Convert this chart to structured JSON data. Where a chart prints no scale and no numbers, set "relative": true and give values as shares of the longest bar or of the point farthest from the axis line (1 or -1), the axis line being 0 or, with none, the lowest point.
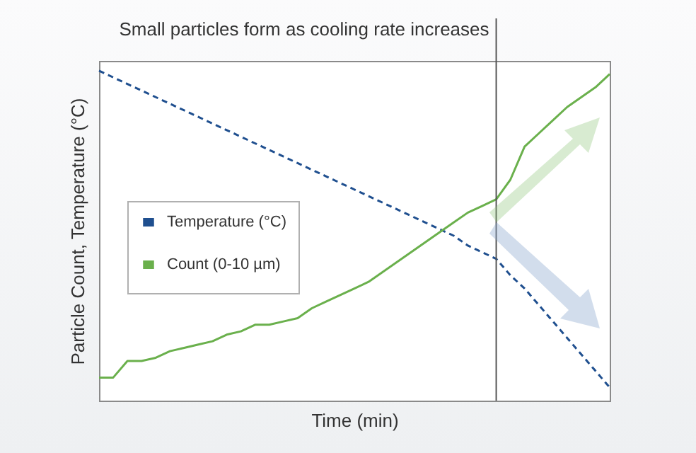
{
  "chart_data": {
    "type": "line",
    "relative": true,
    "xlabel": "Time (min)",
    "ylabel": "Particle Count, Temperature (°C)",
    "legend": "left",
    "categories": [
      null,
      null,
      null,
      null,
      null,
      null,
      null,
      null,
      null,
      null,
      null,
      null,
      null,
      null,
      null,
      null,
      null,
      null,
      null,
      null,
      null,
      null,
      null,
      null,
      null,
      null,
      null,
      null,
      null,
      null,
      null,
      null,
      null,
      null,
      null,
      null,
      null
    ],
    "series": [
      {
        "name": "Temperature (°C)",
        "color": "#1f4f8f",
        "line_style": "dashed",
        "values": [
          1.0,
          0.98,
          0.96,
          0.94,
          0.92,
          0.9,
          0.88,
          0.86,
          0.84,
          0.82,
          0.8,
          0.78,
          0.76,
          0.74,
          0.72,
          0.7,
          0.68,
          0.66,
          0.64,
          0.62,
          0.6,
          0.58,
          0.56,
          0.54,
          0.52,
          0.5,
          0.47,
          0.45,
          0.43,
          0.38,
          0.34,
          0.29,
          0.24,
          0.19,
          0.14,
          0.09,
          0.04
        ]
      },
      {
        "name": "Count (0-10 µm)",
        "color": "#6ab04c",
        "line_style": "solid",
        "values": [
          0.07,
          0.07,
          0.12,
          0.12,
          0.13,
          0.15,
          0.16,
          0.17,
          0.18,
          0.2,
          0.21,
          0.23,
          0.23,
          0.24,
          0.25,
          0.28,
          0.3,
          0.32,
          0.34,
          0.36,
          0.39,
          0.42,
          0.45,
          0.48,
          0.51,
          0.54,
          0.57,
          0.59,
          0.61,
          0.67,
          0.77,
          0.81,
          0.85,
          0.89,
          0.92,
          0.95,
          0.99
        ]
      }
    ],
    "annotations": [
      "Small particles form as cooling rate increases"
    ]
  }
}
